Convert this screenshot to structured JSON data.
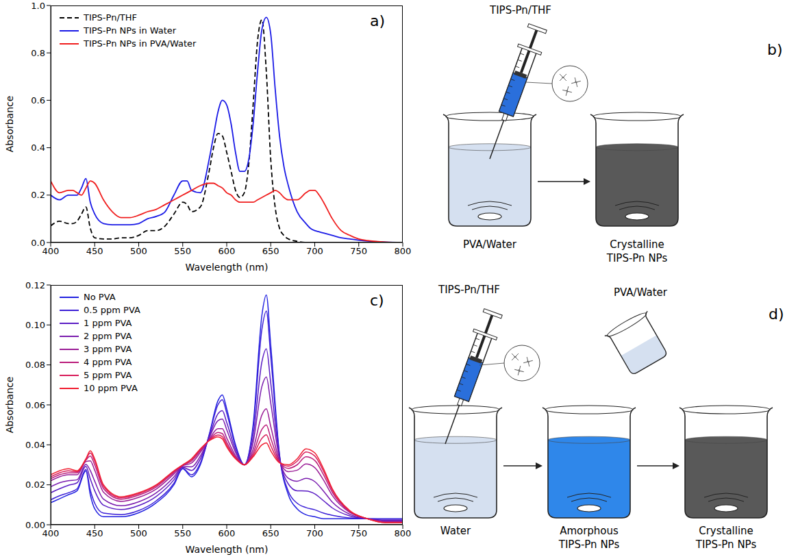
{
  "chart_data": [
    {
      "type": "line",
      "panel_label": "a)",
      "x_label": "Wavelength (nm)",
      "y_label": "Absorbance",
      "xlim": [
        400,
        800
      ],
      "ylim": [
        0,
        1
      ],
      "xticks": [
        400,
        450,
        500,
        550,
        600,
        650,
        700,
        750,
        800
      ],
      "yticks": [
        {
          "value": 0,
          "label": "0.0"
        },
        {
          "value": 0.2,
          "label": "0.2"
        },
        {
          "value": 0.4,
          "label": "0.4"
        },
        {
          "value": 0.6,
          "label": "0.6"
        },
        {
          "value": 0.8,
          "label": "0.8"
        },
        {
          "value": 1,
          "label": "1.0"
        }
      ],
      "grid": false,
      "legend": "upper left",
      "x": [
        400,
        410,
        420,
        425,
        430,
        435,
        440,
        445,
        450,
        460,
        470,
        480,
        490,
        500,
        510,
        520,
        530,
        540,
        550,
        555,
        560,
        570,
        580,
        585,
        590,
        595,
        600,
        605,
        610,
        615,
        620,
        625,
        630,
        635,
        640,
        645,
        650,
        655,
        660,
        665,
        670,
        680,
        690,
        695,
        700,
        705,
        710,
        720,
        730,
        740,
        750,
        760,
        780,
        800
      ],
      "series": [
        {
          "name": "TIPS-Pn/THF",
          "color": "#000000",
          "line_style": "dashed",
          "values": [
            0.07,
            0.09,
            0.08,
            0.08,
            0.09,
            0.12,
            0.15,
            0.06,
            0.02,
            0.015,
            0.015,
            0.02,
            0.02,
            0.03,
            0.05,
            0.05,
            0.07,
            0.12,
            0.17,
            0.16,
            0.13,
            0.15,
            0.3,
            0.4,
            0.46,
            0.45,
            0.38,
            0.3,
            0.22,
            0.19,
            0.21,
            0.33,
            0.58,
            0.85,
            0.94,
            0.72,
            0.35,
            0.15,
            0.06,
            0.03,
            0.015,
            0.005,
            0,
            0,
            0,
            0,
            0,
            0,
            0,
            0,
            0,
            0,
            0,
            0
          ]
        },
        {
          "name": "TIPS-Pn NPs in Water",
          "color": "#1a1ae6",
          "line_style": "solid",
          "values": [
            0.2,
            0.18,
            0.2,
            0.2,
            0.2,
            0.23,
            0.27,
            0.17,
            0.12,
            0.08,
            0.075,
            0.075,
            0.075,
            0.08,
            0.1,
            0.11,
            0.13,
            0.2,
            0.26,
            0.26,
            0.22,
            0.21,
            0.35,
            0.45,
            0.55,
            0.6,
            0.58,
            0.5,
            0.38,
            0.3,
            0.3,
            0.35,
            0.5,
            0.72,
            0.9,
            0.95,
            0.88,
            0.65,
            0.45,
            0.32,
            0.24,
            0.13,
            0.08,
            0.06,
            0.05,
            0.045,
            0.04,
            0.03,
            0.02,
            0.015,
            0.01,
            0.006,
            0.002,
            0
          ]
        },
        {
          "name": "TIPS-Pn NPs in PVA/Water",
          "color": "#f01e1e",
          "line_style": "solid",
          "values": [
            0.26,
            0.21,
            0.22,
            0.22,
            0.21,
            0.2,
            0.23,
            0.26,
            0.25,
            0.18,
            0.13,
            0.105,
            0.105,
            0.115,
            0.13,
            0.14,
            0.16,
            0.18,
            0.2,
            0.21,
            0.22,
            0.24,
            0.25,
            0.25,
            0.24,
            0.23,
            0.21,
            0.2,
            0.18,
            0.17,
            0.17,
            0.17,
            0.17,
            0.18,
            0.19,
            0.2,
            0.21,
            0.22,
            0.21,
            0.19,
            0.18,
            0.18,
            0.21,
            0.22,
            0.22,
            0.2,
            0.17,
            0.1,
            0.05,
            0.03,
            0.015,
            0.008,
            0.002,
            0
          ]
        }
      ]
    },
    {
      "type": "line",
      "panel_label": "c)",
      "x_label": "Wavelength (nm)",
      "y_label": "Absorbance",
      "xlim": [
        400,
        800
      ],
      "ylim": [
        0,
        0.12
      ],
      "xticks": [
        400,
        450,
        500,
        550,
        600,
        650,
        700,
        750,
        800
      ],
      "yticks": [
        {
          "value": 0,
          "label": "0.00"
        },
        {
          "value": 0.02,
          "label": "0.02"
        },
        {
          "value": 0.04,
          "label": "0.04"
        },
        {
          "value": 0.06,
          "label": "0.06"
        },
        {
          "value": 0.08,
          "label": "0.08"
        },
        {
          "value": 0.1,
          "label": "0.10"
        },
        {
          "value": 0.12,
          "label": "0.12"
        }
      ],
      "grid": false,
      "legend": "upper left",
      "x": [
        400,
        410,
        420,
        430,
        440,
        445,
        450,
        460,
        480,
        500,
        520,
        540,
        550,
        560,
        570,
        580,
        590,
        595,
        600,
        610,
        620,
        630,
        640,
        645,
        650,
        660,
        670,
        680,
        690,
        700,
        710,
        720,
        740,
        760,
        780,
        800
      ],
      "series": [
        {
          "name": "No PVA",
          "color": "#2020e0",
          "line_style": "solid",
          "values": [
            0.011,
            0.013,
            0.015,
            0.017,
            0.027,
            0.015,
            0.008,
            0.004,
            0.004,
            0.006,
            0.011,
            0.02,
            0.028,
            0.024,
            0.03,
            0.045,
            0.062,
            0.065,
            0.058,
            0.04,
            0.03,
            0.05,
            0.105,
            0.115,
            0.09,
            0.035,
            0.015,
            0.008,
            0.005,
            0.004,
            0.003,
            0.003,
            0.003,
            0.003,
            0.003,
            0.003
          ]
        },
        {
          "name": "0.5 ppm PVA",
          "color": "#3a1ed6",
          "line_style": "solid",
          "values": [
            0.0125,
            0.0145,
            0.016,
            0.018,
            0.0277,
            0.0174,
            0.0108,
            0.0058,
            0.0051,
            0.0071,
            0.012,
            0.0208,
            0.0282,
            0.025,
            0.0309,
            0.0447,
            0.06,
            0.0626,
            0.0559,
            0.0392,
            0.03,
            0.0482,
            0.0979,
            0.107,
            0.0842,
            0.0346,
            0.0167,
            0.0108,
            0.0086,
            0.0075,
            0.0058,
            0.0047,
            0.0034,
            0.003,
            0.0028,
            0.0028
          ]
        },
        {
          "name": "1 ppm PVA",
          "color": "#5a1cc4",
          "line_style": "solid",
          "values": [
            0.016,
            0.018,
            0.0197,
            0.021,
            0.0292,
            0.0229,
            0.017,
            0.0098,
            0.0076,
            0.0096,
            0.0142,
            0.0225,
            0.0287,
            0.0272,
            0.0329,
            0.0439,
            0.0555,
            0.0571,
            0.0512,
            0.0375,
            0.03,
            0.0442,
            0.0816,
            0.088,
            0.0709,
            0.0336,
            0.0204,
            0.017,
            0.0169,
            0.0155,
            0.012,
            0.0084,
            0.0044,
            0.003,
            0.0023,
            0.0023
          ]
        },
        {
          "name": "2 ppm PVA",
          "color": "#7a1cae",
          "line_style": "solid",
          "values": [
            0.019,
            0.021,
            0.022,
            0.0225,
            0.0303,
            0.0271,
            0.0218,
            0.0128,
            0.0095,
            0.0115,
            0.016,
            0.0239,
            0.0291,
            0.029,
            0.0344,
            0.0434,
            0.0521,
            0.0529,
            0.0476,
            0.0362,
            0.03,
            0.0412,
            0.0693,
            0.074,
            0.0609,
            0.0328,
            0.0233,
            0.0218,
            0.0232,
            0.0216,
            0.0168,
            0.0113,
            0.0052,
            0.003,
            0.0019,
            0.0019
          ]
        },
        {
          "name": "3 ppm PVA",
          "color": "#9a1c96",
          "line_style": "solid",
          "values": [
            0.022,
            0.024,
            0.025,
            0.025,
            0.0316,
            0.032,
            0.0273,
            0.0163,
            0.0117,
            0.0137,
            0.0179,
            0.0254,
            0.0295,
            0.0309,
            0.0362,
            0.0427,
            0.0481,
            0.0481,
            0.0434,
            0.0346,
            0.03,
            0.0377,
            0.055,
            0.058,
            0.0492,
            0.0319,
            0.0266,
            0.0273,
            0.0304,
            0.0286,
            0.0223,
            0.0146,
            0.0061,
            0.003,
            0.0015,
            0.0015
          ]
        },
        {
          "name": "4 ppm PVA",
          "color": "#ba1c7a",
          "line_style": "solid",
          "values": [
            0.023,
            0.025,
            0.026,
            0.026,
            0.0323,
            0.0344,
            0.03,
            0.0181,
            0.0128,
            0.0148,
            0.0189,
            0.0262,
            0.0298,
            0.0319,
            0.037,
            0.0424,
            0.0462,
            0.0456,
            0.0413,
            0.0338,
            0.03,
            0.0359,
            0.0478,
            0.05,
            0.0434,
            0.0315,
            0.0282,
            0.03,
            0.034,
            0.0322,
            0.025,
            0.0162,
            0.0065,
            0.003,
            0.0012,
            0.0012
          ]
        },
        {
          "name": "5 ppm PVA",
          "color": "#d81c5a",
          "line_style": "solid",
          "values": [
            0.024,
            0.026,
            0.027,
            0.0265,
            0.0327,
            0.0359,
            0.0318,
            0.0192,
            0.0135,
            0.0155,
            0.0196,
            0.0267,
            0.0299,
            0.0326,
            0.0376,
            0.0422,
            0.0449,
            0.0441,
            0.04,
            0.0334,
            0.03,
            0.0348,
            0.0433,
            0.045,
            0.0397,
            0.0312,
            0.0293,
            0.0318,
            0.0364,
            0.0344,
            0.0268,
            0.0173,
            0.0068,
            0.003,
            0.0011,
            0.0011
          ]
        },
        {
          "name": "10 ppm PVA",
          "color": "#f01e30",
          "line_style": "solid",
          "values": [
            0.025,
            0.027,
            0.028,
            0.027,
            0.033,
            0.037,
            0.033,
            0.02,
            0.014,
            0.016,
            0.02,
            0.027,
            0.03,
            0.033,
            0.038,
            0.042,
            0.044,
            0.043,
            0.039,
            0.033,
            0.03,
            0.034,
            0.04,
            0.041,
            0.037,
            0.031,
            0.03,
            0.033,
            0.038,
            0.036,
            0.028,
            0.018,
            0.007,
            0.003,
            0.001,
            0.001
          ]
        }
      ]
    }
  ],
  "diagrams": [
    {
      "panel_label": "b)",
      "syringe_label": "TIPS-Pn/THF",
      "beakers": [
        {
          "label": [
            "PVA/Water"
          ]
        },
        {
          "label": [
            "Crystalline",
            "TIPS-Pn NPs"
          ]
        }
      ]
    },
    {
      "panel_label": "d)",
      "syringe_label": "TIPS-Pn/THF",
      "pour_label": "PVA/Water",
      "beakers": [
        {
          "label": [
            "Water"
          ]
        },
        {
          "label": [
            "Amorphous",
            "TIPS-Pn NPs"
          ]
        },
        {
          "label": [
            "Crystalline",
            "TIPS-Pn NPs"
          ]
        }
      ]
    }
  ]
}
